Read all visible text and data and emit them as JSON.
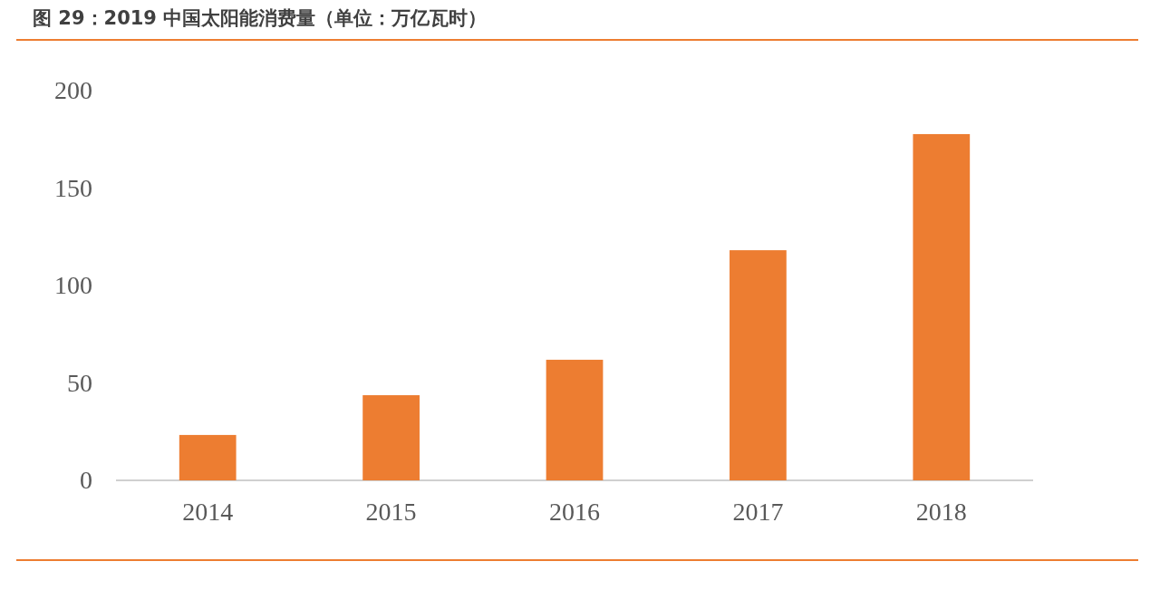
{
  "chart_data": {
    "type": "bar",
    "title": "图 29：2019 中国太阳能消费量（单位：万亿瓦时）",
    "categories": [
      "2014",
      "2015",
      "2016",
      "2017",
      "2018"
    ],
    "values": [
      23.3,
      43.7,
      61.9,
      118.1,
      177.7
    ],
    "color": "#ed7d31",
    "ylim": [
      0,
      200
    ],
    "yticks": [
      0,
      50,
      100,
      150,
      200
    ]
  }
}
